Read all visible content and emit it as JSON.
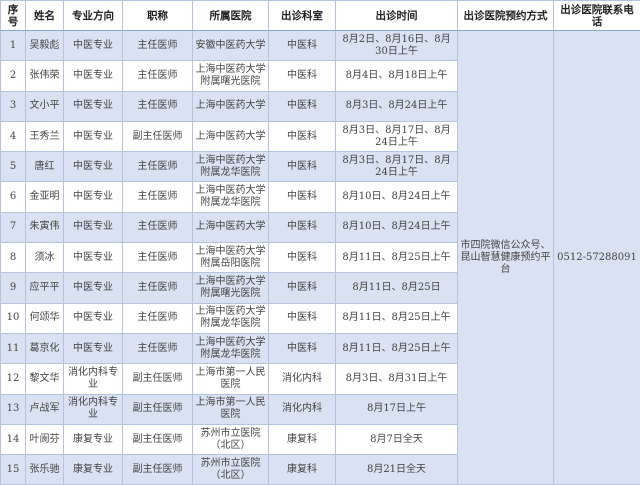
{
  "headers": [
    "序号",
    "姓名",
    "专业方向",
    "职称",
    "所属医院",
    "出诊科室",
    "出诊时间",
    "出诊医院预约方式",
    "出诊医院联系电话"
  ],
  "rows": [
    [
      "1",
      "吴毅彪",
      "中医专业",
      "主任医师",
      "安徽中医药大学",
      "中医科",
      "8月2日、8月16日、8月30日上午"
    ],
    [
      "2",
      "张伟荣",
      "中医专业",
      "主任医师",
      "上海中医药大学附属曙光医院",
      "中医科",
      "8月4日、8月18日上午"
    ],
    [
      "3",
      "文小平",
      "中医专业",
      "主任医师",
      "上海中医药大学",
      "中医科",
      "8月3日、8月24日上午"
    ],
    [
      "4",
      "王秀兰",
      "中医专业",
      "副主任医师",
      "上海中医药大学",
      "中医科",
      "8月3日、8月17日、8月24日上午"
    ],
    [
      "5",
      "唐红",
      "中医专业",
      "主任医师",
      "上海中医药大学附属龙华医院",
      "中医科",
      "8月3日、8月17日、8月24日上午"
    ],
    [
      "6",
      "金亚明",
      "中医专业",
      "主任医师",
      "上海中医药大学附属龙华医院",
      "中医科",
      "8月10日、8月24日上午"
    ],
    [
      "7",
      "朱寅伟",
      "中医专业",
      "主任医师",
      "上海中医药大学",
      "中医科",
      "8月10日、8月24日上午"
    ],
    [
      "8",
      "须冰",
      "中医专业",
      "主任医师",
      "上海中医药大学附属岳阳医院",
      "中医科",
      "8月11日、8月25日上午"
    ],
    [
      "9",
      "应平平",
      "中医专业",
      "主任医师",
      "上海中医药大学附属曙光医院",
      "中医科",
      "8月11日、8月25日"
    ],
    [
      "10",
      "何颂华",
      "中医专业",
      "主任医师",
      "上海中医药大学附属龙华医院",
      "中医科",
      "8月11日、8月25日上午"
    ],
    [
      "11",
      "葛京化",
      "中医专业",
      "主任医师",
      "上海中医药大学附属龙华医院",
      "中医科",
      "8月11日、8月25日上午"
    ],
    [
      "12",
      "黎文华",
      "消化内科专业",
      "副主任医师",
      "上海市第一人民医院",
      "消化内科",
      "8月3日、8月31日上午"
    ],
    [
      "13",
      "卢战军",
      "消化内科专业",
      "副主任医师",
      "上海市第一人民医院",
      "消化内科",
      "8月17日上午"
    ],
    [
      "14",
      "叶阆芬",
      "康复专业",
      "副主任医师",
      "苏州市立医院（北区）",
      "康复科",
      "8月7日全天"
    ],
    [
      "15",
      "张乐驰",
      "康复专业",
      "副主任医师",
      "苏州市立医院（北区）",
      "康复科",
      "8月21日全天"
    ]
  ],
  "booking_method": "市四院微信公众号、昆山智慧健康预约平台",
  "contact_phone": "0512-57288091",
  "colors": {
    "stripe": "#d9e1f2",
    "border": "#b4c3e0"
  }
}
